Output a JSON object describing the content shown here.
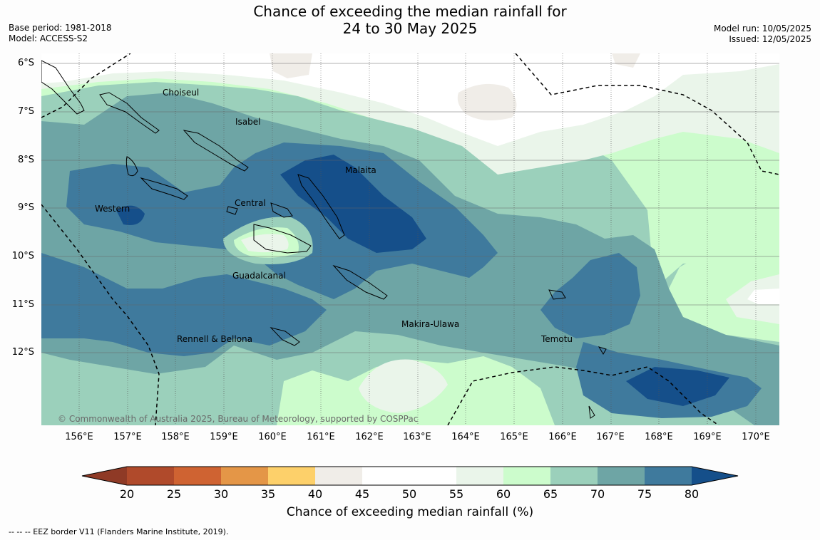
{
  "title": {
    "line1": "Chance of exceeding the median rainfall for",
    "line2": "24 to 30 May 2025"
  },
  "meta_left": {
    "base_period": "Base period: 1981-2018",
    "model": "Model: ACCESS-S2"
  },
  "meta_right": {
    "model_run": "Model run: 10/05/2025",
    "issued": "Issued: 12/05/2025"
  },
  "map": {
    "lat_labels": [
      "6°S",
      "7°S",
      "8°S",
      "9°S",
      "10°S",
      "11°S",
      "12°S"
    ],
    "lon_labels": [
      "156°E",
      "157°E",
      "158°E",
      "159°E",
      "160°E",
      "161°E",
      "162°E",
      "163°E",
      "164°E",
      "165°E",
      "166°E",
      "167°E",
      "168°E",
      "169°E",
      "170°E"
    ],
    "places": {
      "choiseul": "Choiseul",
      "isabel": "Isabel",
      "malaita": "Malaita",
      "western": "Western",
      "central": "Central",
      "guadalcanal": "Guadalcanal",
      "makira": "Makira-Ulawa",
      "temotu": "Temotu",
      "rennell": "Rennell & Bellona"
    },
    "copyright": "© Commonwealth of Australia 2025, Bureau of Meteorology, supported by COSPPac",
    "eez_line": "dashed black",
    "coastline": "black outline"
  },
  "colorbar": {
    "ticks": [
      "20",
      "25",
      "30",
      "35",
      "40",
      "45",
      "50",
      "55",
      "60",
      "65",
      "70",
      "75",
      "80"
    ],
    "colors": {
      "below20": "#8f3a26",
      "c20_25": "#b04a2b",
      "c25_30": "#cf6332",
      "c30_35": "#e49647",
      "c35_40": "#fdd06a",
      "c40_45": "#f0ede8",
      "c45_50": "#ffffff",
      "c50_55": "#ffffff",
      "c55_60": "#eaf5ea",
      "c60_65": "#ccfccc",
      "c65_70": "#9bd0bb",
      "c70_75": "#6ea5a5",
      "c75_80": "#3f7a9d",
      "above80": "#154f8a"
    },
    "title": "Chance of exceeding median rainfall (%)"
  },
  "footnote": "--  --  -- EEZ border V11 (Flanders Marine Institute, 2019)."
}
